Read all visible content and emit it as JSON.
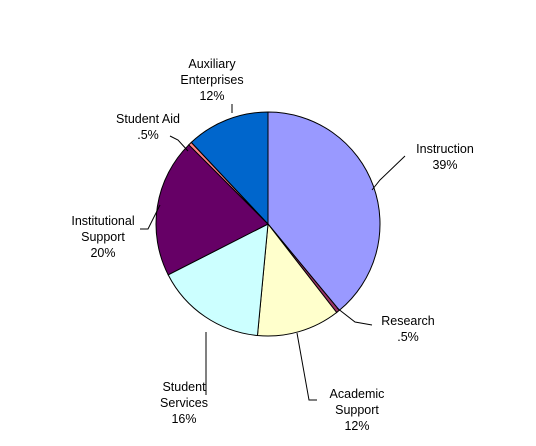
{
  "chart_data": {
    "type": "pie",
    "title": "",
    "start_angle_deg": 0,
    "direction": "clockwise",
    "slices": [
      {
        "name": "Instruction",
        "label_lines": [
          "Instruction",
          "39%"
        ],
        "value": 39,
        "color": "#9999FF"
      },
      {
        "name": "Research",
        "label_lines": [
          "Research",
          ".5%"
        ],
        "value": 0.5,
        "color": "#993366"
      },
      {
        "name": "Academic Support",
        "label_lines": [
          "Academic",
          "Support",
          "12%"
        ],
        "value": 12,
        "color": "#FFFFCC"
      },
      {
        "name": "Student Services",
        "label_lines": [
          "Student",
          "Services",
          "16%"
        ],
        "value": 16,
        "color": "#CCFFFF"
      },
      {
        "name": "Institutional Support",
        "label_lines": [
          "Institutional",
          "Support",
          "20%"
        ],
        "value": 20,
        "color": "#660066"
      },
      {
        "name": "Student Aid",
        "label_lines": [
          "Student Aid",
          ".5%"
        ],
        "value": 0.5,
        "color": "#FF8080"
      },
      {
        "name": "Auxiliary Enterprises",
        "label_lines": [
          "Auxiliary",
          "Enterprises",
          "12%"
        ],
        "value": 12,
        "color": "#0066CC"
      }
    ],
    "legend": "none"
  }
}
